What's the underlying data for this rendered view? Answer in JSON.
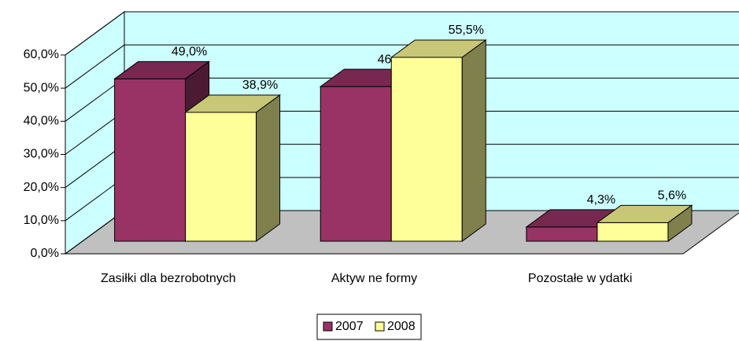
{
  "chart_data": {
    "type": "bar3d",
    "categories": [
      "Zasiłki dla bezrobotnych",
      "Aktyw ne formy",
      "Pozostałe w ydatki"
    ],
    "series": [
      {
        "name": "2007",
        "color": "#993366",
        "values": [
          49.0,
          46.7,
          4.3
        ],
        "value_labels": [
          "49,0%",
          "46,7%",
          "4,3%"
        ]
      },
      {
        "name": "2008",
        "color": "#ffff99",
        "values": [
          38.9,
          55.5,
          5.6
        ],
        "value_labels": [
          "38,9%",
          "55,5%",
          "5,6%"
        ]
      }
    ],
    "ylim": [
      0,
      60
    ],
    "yticks": [
      {
        "value": 0,
        "label": "0,0%"
      },
      {
        "value": 10,
        "label": "10,0%"
      },
      {
        "value": 20,
        "label": "20,0%"
      },
      {
        "value": 30,
        "label": "30,0%"
      },
      {
        "value": 40,
        "label": "40,0%"
      },
      {
        "value": 50,
        "label": "50,0%"
      },
      {
        "value": 60,
        "label": "60,0%"
      }
    ],
    "grid": true,
    "legend": "bottom"
  }
}
